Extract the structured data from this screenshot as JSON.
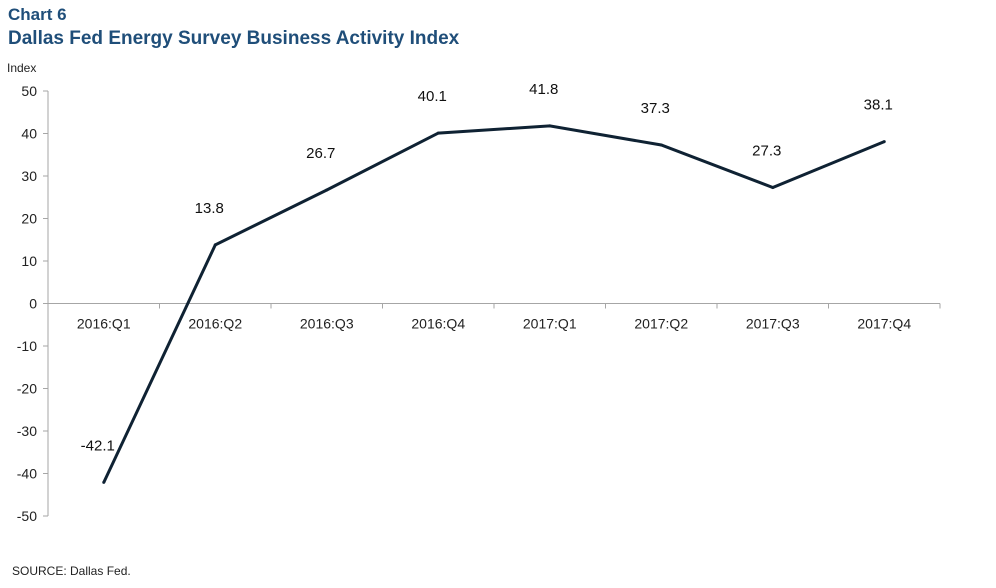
{
  "chart_label": "Chart 6",
  "source": "SOURCE: Dallas Fed.",
  "colors": {
    "title": "#1f4e79",
    "line": "#0f2233",
    "axis": "#a6a6a6"
  },
  "chart_data": {
    "type": "line",
    "title": "Dallas Fed Energy Survey Business Activity Index",
    "ylabel": "Index",
    "xlabel": "",
    "categories": [
      "2016:Q1",
      "2016:Q2",
      "2016:Q3",
      "2016:Q4",
      "2017:Q1",
      "2017:Q2",
      "2017:Q3",
      "2017:Q4"
    ],
    "values": [
      -42.1,
      13.8,
      26.7,
      40.1,
      41.8,
      37.3,
      27.3,
      38.1
    ],
    "data_labels": [
      "-42.1",
      "13.8",
      "26.7",
      "40.1",
      "41.8",
      "37.3",
      "27.3",
      "38.1"
    ],
    "ylim": [
      -50,
      50
    ],
    "yticks": [
      50,
      40,
      30,
      20,
      10,
      0,
      -10,
      -20,
      -30,
      -40,
      -50
    ],
    "grid": false,
    "legend": "none"
  }
}
